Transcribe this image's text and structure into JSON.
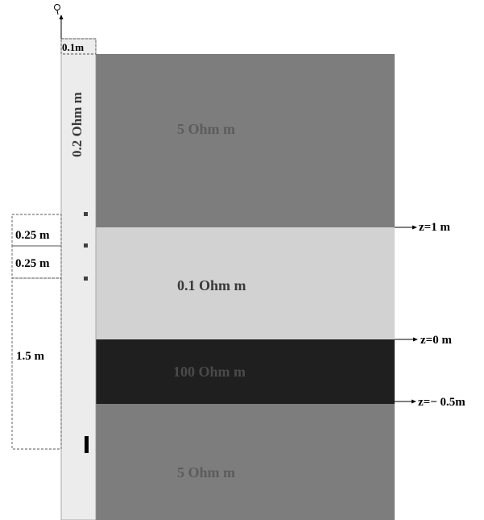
{
  "borehole": {
    "resistivity_label": "0.2 Ohm m",
    "width_label": "0.1m"
  },
  "layers": [
    {
      "resistivity_label": "5 Ohm m",
      "color": "#7d7d7d",
      "label_color": "#5c5c5c"
    },
    {
      "resistivity_label": "0.1 Ohm m",
      "color": "#d2d2d2",
      "label_color": "#3a3a3a"
    },
    {
      "resistivity_label": "100 Ohm m",
      "color": "#1f1f1f",
      "label_color": "#4a4a4a"
    },
    {
      "resistivity_label": "5 Ohm m",
      "color": "#7d7d7d",
      "label_color": "#5c5c5c"
    }
  ],
  "boundaries": [
    {
      "label": "z=1 m"
    },
    {
      "label": "z=0 m"
    },
    {
      "label": "z=− 0.5m"
    }
  ],
  "spacings": [
    {
      "label": "0.25 m"
    },
    {
      "label": "0.25 m"
    },
    {
      "label": "1.5 m"
    }
  ],
  "colors": {
    "borehole": "#ececec",
    "electrode": "#404040",
    "source": "#000000",
    "line": "#000000",
    "dashed": "#555555"
  }
}
